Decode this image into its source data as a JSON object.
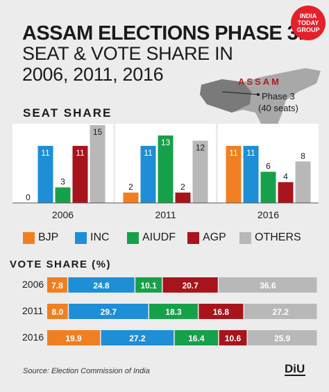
{
  "title": {
    "line1": "ASSAM ELECTIONS PHASE 3:",
    "line2": "SEAT & VOTE SHARE IN",
    "line3": "2006, 2011, 2016"
  },
  "logo": {
    "line1": "INDIA",
    "line2": "TODAY",
    "line3": "GROUP"
  },
  "map": {
    "region_label": "ASSAM",
    "phase_label": "Phase 3",
    "seats_label": "(40 seats)"
  },
  "seat_share_heading": "SEAT SHARE",
  "vote_share_heading": "VOTE SHARE (%)",
  "source": "Source: Election Commission of India",
  "colors": {
    "BJP": "#f07f22",
    "INC": "#1e8ed6",
    "AIUDF": "#17a04a",
    "AGP": "#a8141c",
    "OTHERS": "#b8b8b8"
  },
  "legend": [
    {
      "name": "BJP",
      "color": "#f07f22"
    },
    {
      "name": "INC",
      "color": "#1e8ed6"
    },
    {
      "name": "AIUDF",
      "color": "#17a04a"
    },
    {
      "name": "AGP",
      "color": "#a8141c"
    },
    {
      "name": "OTHERS",
      "color": "#b8b8b8"
    }
  ],
  "chart_data": [
    {
      "type": "bar",
      "title": "SEAT SHARE",
      "categories": [
        "2006",
        "2011",
        "2016"
      ],
      "series": [
        {
          "name": "BJP",
          "values": [
            0,
            2,
            11
          ]
        },
        {
          "name": "INC",
          "values": [
            11,
            11,
            11
          ]
        },
        {
          "name": "AIUDF",
          "values": [
            3,
            13,
            6
          ]
        },
        {
          "name": "AGP",
          "values": [
            11,
            2,
            4
          ]
        },
        {
          "name": "OTHERS",
          "values": [
            15,
            12,
            8
          ]
        }
      ],
      "ylim": [
        0,
        15
      ]
    },
    {
      "type": "bar",
      "orientation": "horizontal-stacked",
      "title": "VOTE SHARE (%)",
      "categories": [
        "2006",
        "2011",
        "2016"
      ],
      "series": [
        {
          "name": "BJP",
          "values": [
            7.8,
            8.0,
            19.9
          ],
          "labels": [
            "7.8",
            "8.0",
            "19.9"
          ]
        },
        {
          "name": "INC",
          "values": [
            24.8,
            29.7,
            27.2
          ],
          "labels": [
            "24.8",
            "29.7",
            "27.2"
          ]
        },
        {
          "name": "AIUDF",
          "values": [
            10.1,
            18.3,
            16.4
          ],
          "labels": [
            "10.1",
            "18.3",
            "16.4"
          ]
        },
        {
          "name": "AGP",
          "values": [
            20.7,
            16.8,
            10.6
          ],
          "labels": [
            "20.7",
            "16.8",
            "10.6"
          ]
        },
        {
          "name": "OTHERS",
          "values": [
            36.6,
            27.2,
            25.9
          ],
          "labels": [
            "36.6",
            "27.2",
            "25.9"
          ]
        }
      ]
    }
  ]
}
